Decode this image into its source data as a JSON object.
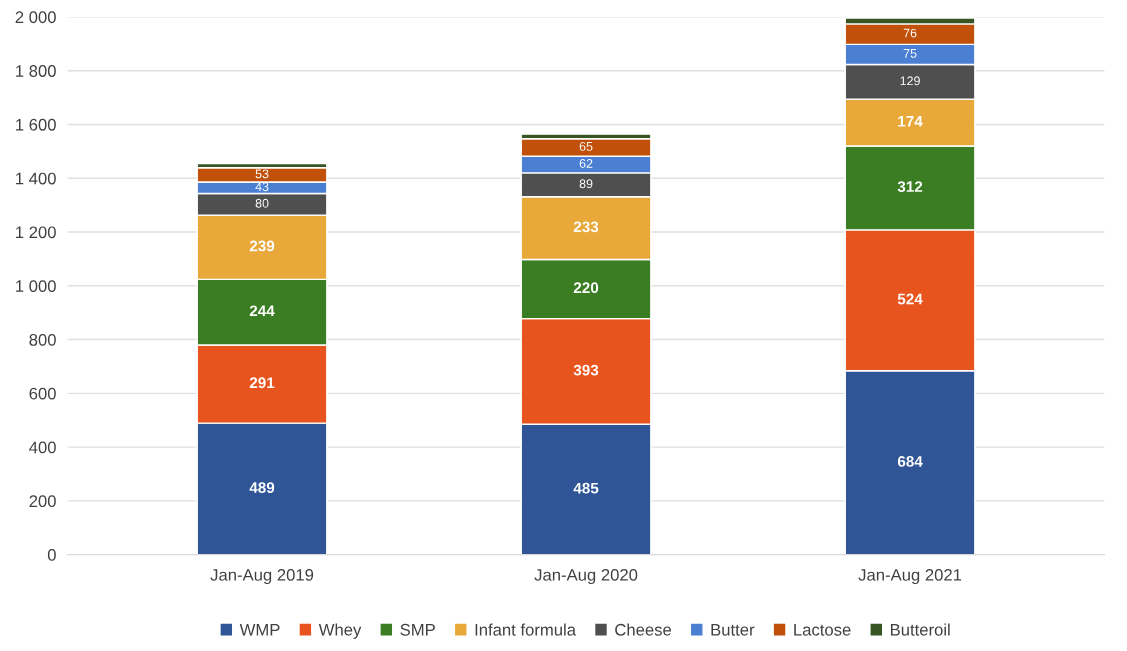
{
  "chart_data": {
    "type": "bar",
    "stacked": true,
    "categories": [
      "Jan-Aug 2019",
      "Jan-Aug 2020",
      "Jan-Aug 2021"
    ],
    "series": [
      {
        "name": "WMP",
        "color": "#2f5597",
        "values": [
          489,
          485,
          684
        ],
        "value_labels": [
          "489",
          "485",
          "684"
        ]
      },
      {
        "name": "Whey",
        "color": "#e8541e",
        "values": [
          291,
          393,
          524
        ],
        "value_labels": [
          "291",
          "393",
          "524"
        ]
      },
      {
        "name": "SMP",
        "color": "#3a7d22",
        "values": [
          244,
          220,
          312
        ],
        "value_labels": [
          "244",
          "220",
          "312"
        ]
      },
      {
        "name": "Infant formula",
        "color": "#e9a83a",
        "values": [
          239,
          233,
          174
        ],
        "value_labels": [
          "239",
          "233",
          "174"
        ]
      },
      {
        "name": "Cheese",
        "color": "#4f4f4f",
        "values": [
          80,
          89,
          129
        ],
        "value_labels": [
          "80",
          "89",
          "129"
        ]
      },
      {
        "name": "Butter",
        "color": "#4a7fd4",
        "values": [
          43,
          62,
          75
        ],
        "value_labels": [
          "43",
          "62",
          "75"
        ]
      },
      {
        "name": "Lactose",
        "color": "#c0500a",
        "values": [
          53,
          65,
          76
        ],
        "value_labels": [
          "53",
          "65",
          "76"
        ]
      },
      {
        "name": "Butteroil",
        "color": "#375623",
        "values": [
          16,
          17,
          22
        ]
      }
    ],
    "ylim": [
      0,
      2000
    ],
    "yticks": [
      {
        "value": 0,
        "label": "0"
      },
      {
        "value": 200,
        "label": "200"
      },
      {
        "value": 400,
        "label": "400"
      },
      {
        "value": 600,
        "label": "600"
      },
      {
        "value": 800,
        "label": "800"
      },
      {
        "value": 1000,
        "label": "1 000"
      },
      {
        "value": 1200,
        "label": "1 200"
      },
      {
        "value": 1400,
        "label": "1 400"
      },
      {
        "value": 1600,
        "label": "1 600"
      },
      {
        "value": 1800,
        "label": "1 800"
      },
      {
        "value": 2000,
        "label": "2 000"
      }
    ],
    "grid": "y",
    "legend": "bottom"
  }
}
